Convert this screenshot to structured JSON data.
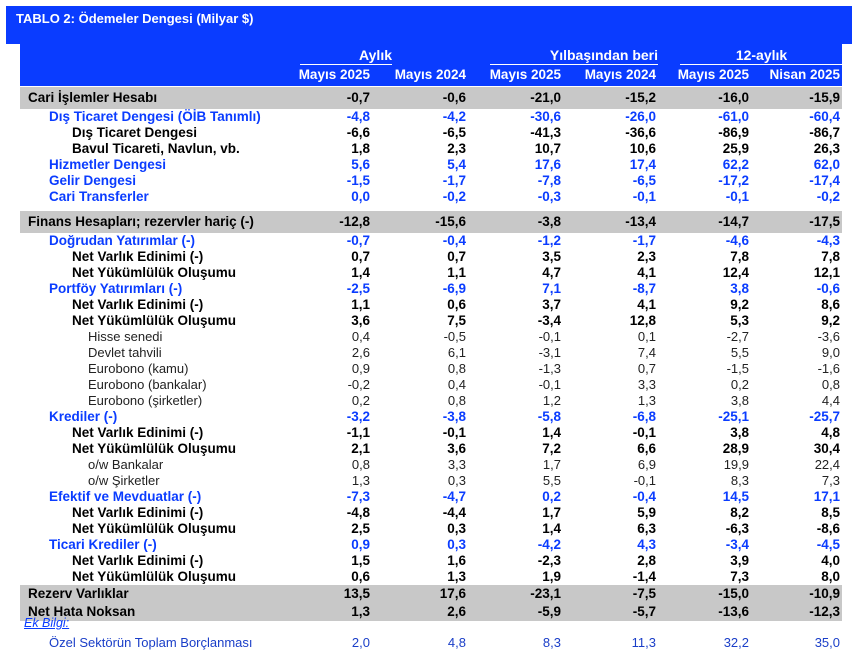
{
  "title": "TABLO 2: Ödemeler Dengesi (Milyar $)",
  "groups": [
    "Aylık",
    "Yılbaşından beri",
    "12-aylık"
  ],
  "columns": [
    "Mayıs 2025",
    "Mayıs 2024",
    "Mayıs 2025",
    "Mayıs 2024",
    "Mayıs 2025",
    "Nisan 2025"
  ],
  "rows": [
    {
      "label": "Cari İşlemler Hesabı",
      "style": "section",
      "v": [
        "-0,7",
        "-0,6",
        "-21,0",
        "-15,2",
        "-16,0",
        "-15,9"
      ]
    },
    {
      "label": "Dış Ticaret Dengesi (ÖİB Tanımlı)",
      "style": "blue",
      "v": [
        "-4,8",
        "-4,2",
        "-30,6",
        "-26,0",
        "-61,0",
        "-60,4"
      ]
    },
    {
      "label": "Dış Ticaret Dengesi",
      "style": "sub",
      "v": [
        "-6,6",
        "-6,5",
        "-41,3",
        "-36,6",
        "-86,9",
        "-86,7"
      ]
    },
    {
      "label": "Bavul Ticareti, Navlun, vb.",
      "style": "sub",
      "v": [
        "1,8",
        "2,3",
        "10,7",
        "10,6",
        "25,9",
        "26,3"
      ]
    },
    {
      "label": "Hizmetler Dengesi",
      "style": "blue",
      "v": [
        "5,6",
        "5,4",
        "17,6",
        "17,4",
        "62,2",
        "62,0"
      ]
    },
    {
      "label": "Gelir Dengesi",
      "style": "blue",
      "v": [
        "-1,5",
        "-1,7",
        "-7,8",
        "-6,5",
        "-17,2",
        "-17,4"
      ]
    },
    {
      "label": "Cari Transferler",
      "style": "blue",
      "v": [
        "0,0",
        "-0,2",
        "-0,3",
        "-0,1",
        "-0,1",
        "-0,2"
      ]
    },
    {
      "label": "Finans Hesapları; rezervler hariç (-)",
      "style": "section",
      "v": [
        "-12,8",
        "-15,6",
        "-3,8",
        "-13,4",
        "-14,7",
        "-17,5"
      ]
    },
    {
      "label": "Doğrudan Yatırımlar (-)",
      "style": "blue",
      "v": [
        "-0,7",
        "-0,4",
        "-1,2",
        "-1,7",
        "-4,6",
        "-4,3"
      ]
    },
    {
      "label": "Net Varlık Edinimi (-)",
      "style": "sub",
      "v": [
        "0,7",
        "0,7",
        "3,5",
        "2,3",
        "7,8",
        "7,8"
      ]
    },
    {
      "label": "Net Yükümlülük Oluşumu",
      "style": "sub",
      "v": [
        "1,4",
        "1,1",
        "4,7",
        "4,1",
        "12,4",
        "12,1"
      ]
    },
    {
      "label": "Portföy Yatırımları (-)",
      "style": "blue",
      "v": [
        "-2,5",
        "-6,9",
        "7,1",
        "-8,7",
        "3,8",
        "-0,6"
      ]
    },
    {
      "label": "Net Varlık Edinimi (-)",
      "style": "sub",
      "v": [
        "1,1",
        "0,6",
        "3,7",
        "4,1",
        "9,2",
        "8,6"
      ]
    },
    {
      "label": "Net Yükümlülük Oluşumu",
      "style": "sub",
      "v": [
        "3,6",
        "7,5",
        "-3,4",
        "12,8",
        "5,3",
        "9,2"
      ]
    },
    {
      "label": "Hisse senedi",
      "style": "light",
      "v": [
        "0,4",
        "-0,5",
        "-0,1",
        "0,1",
        "-2,7",
        "-3,6"
      ]
    },
    {
      "label": "Devlet tahvili",
      "style": "light",
      "v": [
        "2,6",
        "6,1",
        "-3,1",
        "7,4",
        "5,5",
        "9,0"
      ]
    },
    {
      "label": "Eurobono (kamu)",
      "style": "light",
      "v": [
        "0,9",
        "0,8",
        "-1,3",
        "0,7",
        "-1,5",
        "-1,6"
      ]
    },
    {
      "label": "Eurobono (bankalar)",
      "style": "light",
      "v": [
        "-0,2",
        "0,4",
        "-0,1",
        "3,3",
        "0,2",
        "0,8"
      ]
    },
    {
      "label": "Eurobono (şirketler)",
      "style": "light",
      "v": [
        "0,2",
        "0,8",
        "1,2",
        "1,3",
        "3,8",
        "4,4"
      ]
    },
    {
      "label": "Krediler (-)",
      "style": "blue",
      "v": [
        "-3,2",
        "-3,8",
        "-5,8",
        "-6,8",
        "-25,1",
        "-25,7"
      ]
    },
    {
      "label": "Net Varlık Edinimi (-)",
      "style": "sub",
      "v": [
        "-1,1",
        "-0,1",
        "1,4",
        "-0,1",
        "3,8",
        "4,8"
      ]
    },
    {
      "label": "Net Yükümlülük Oluşumu",
      "style": "sub",
      "v": [
        "2,1",
        "3,6",
        "7,2",
        "6,6",
        "28,9",
        "30,4"
      ]
    },
    {
      "label": "o/w Bankalar",
      "style": "light",
      "v": [
        "0,8",
        "3,3",
        "1,7",
        "6,9",
        "19,9",
        "22,4"
      ]
    },
    {
      "label": "o/w Şirketler",
      "style": "light",
      "v": [
        "1,3",
        "0,3",
        "5,5",
        "-0,1",
        "8,3",
        "7,3"
      ]
    },
    {
      "label": "Efektif ve Mevduatlar (-)",
      "style": "blue",
      "v": [
        "-7,3",
        "-4,7",
        "0,2",
        "-0,4",
        "14,5",
        "17,1"
      ]
    },
    {
      "label": "Net Varlık Edinimi (-)",
      "style": "sub",
      "v": [
        "-4,8",
        "-4,4",
        "1,7",
        "5,9",
        "8,2",
        "8,5"
      ]
    },
    {
      "label": "Net Yükümlülük Oluşumu",
      "style": "sub",
      "v": [
        "2,5",
        "0,3",
        "1,4",
        "6,3",
        "-6,3",
        "-8,6"
      ]
    },
    {
      "label": "Ticari Krediler (-)",
      "style": "blue",
      "v": [
        "0,9",
        "0,3",
        "-4,2",
        "4,3",
        "-3,4",
        "-4,5"
      ]
    },
    {
      "label": "Net Varlık Edinimi (-)",
      "style": "sub",
      "v": [
        "1,5",
        "1,6",
        "-2,3",
        "2,8",
        "3,9",
        "4,0"
      ]
    },
    {
      "label": "Net Yükümlülük Oluşumu",
      "style": "sub",
      "v": [
        "0,6",
        "1,3",
        "1,9",
        "-1,4",
        "7,3",
        "8,0"
      ]
    },
    {
      "label": "Rezerv Varlıklar",
      "style": "grayrow",
      "v": [
        "13,5",
        "17,6",
        "-23,1",
        "-7,5",
        "-15,0",
        "-10,9"
      ]
    },
    {
      "label": "Net Hata Noksan",
      "style": "grayrow",
      "v": [
        "1,3",
        "2,6",
        "-5,9",
        "-5,7",
        "-13,6",
        "-12,3"
      ]
    }
  ],
  "footer": {
    "ek_label": "Ek Bilgi:",
    "ozel": {
      "label": "Özel Sektörün Toplam Borçlanması",
      "v": [
        "2,0",
        "4,8",
        "8,3",
        "11,3",
        "32,2",
        "35,0"
      ]
    }
  },
  "colors": {
    "header_bg": "#0a3cff",
    "section_bg": "#c8c8c8",
    "blue_text": "#0a3cff"
  }
}
